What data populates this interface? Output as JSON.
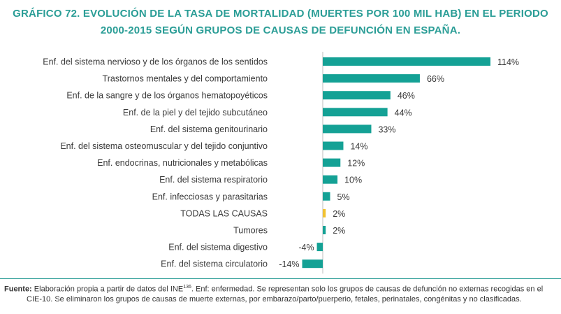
{
  "title_line1": "GRÁFICO 72. EVOLUCIÓN DE LA TASA DE MORTALIDAD (MUERTES POR 100 MIL HAB) EN EL PERIODO",
  "title_line2": "2000-2015 SEGÚN GRUPOS DE CAUSAS DE DEFUNCIÓN EN ESPAÑA.",
  "colors": {
    "accent": "#14a195",
    "highlight": "#f1c232",
    "title": "#2a9d96",
    "text": "#333333"
  },
  "chart_data": {
    "type": "bar",
    "orientation": "horizontal",
    "categories": [
      "Enf. del sistema nervioso y de los órganos de los sentidos",
      "Trastornos mentales y del comportamiento",
      "Enf. de la sangre y de los órganos hematopoyéticos",
      "Enf. de la piel y del tejido subcutáneo",
      "Enf. del sistema genitourinario",
      "Enf. del sistema osteomuscular y del tejido conjuntivo",
      "Enf. endocrinas, nutricionales y metabólicas",
      "Enf. del sistema respiratorio",
      "Enf. infecciosas y parasitarias",
      "TODAS LAS CAUSAS",
      "Tumores",
      "Enf. del sistema digestivo",
      "Enf. del sistema circulatorio"
    ],
    "values": [
      114,
      66,
      46,
      44,
      33,
      14,
      12,
      10,
      5,
      2,
      2,
      -4,
      -14
    ],
    "labels": [
      "114%",
      "66%",
      "46%",
      "44%",
      "33%",
      "14%",
      "12%",
      "10%",
      "5%",
      "2%",
      "2%",
      "-4%",
      "-14%"
    ],
    "highlight_category": "TODAS LAS CAUSAS",
    "xlim": [
      -14,
      114
    ],
    "grid": false,
    "legend": false
  },
  "source": {
    "label": "Fuente:",
    "text_a": " Elaboración propia a partir de datos del INE",
    "sup": "136",
    "text_b": ". Enf: enfermedad. Se representan solo los grupos de causas de defunción no externas recogidas en el",
    "line2": "CIE-10. Se eliminaron los grupos de causas de muerte externas, por embarazo/parto/puerperio, fetales, perinatales, congénitas y no clasificadas."
  }
}
